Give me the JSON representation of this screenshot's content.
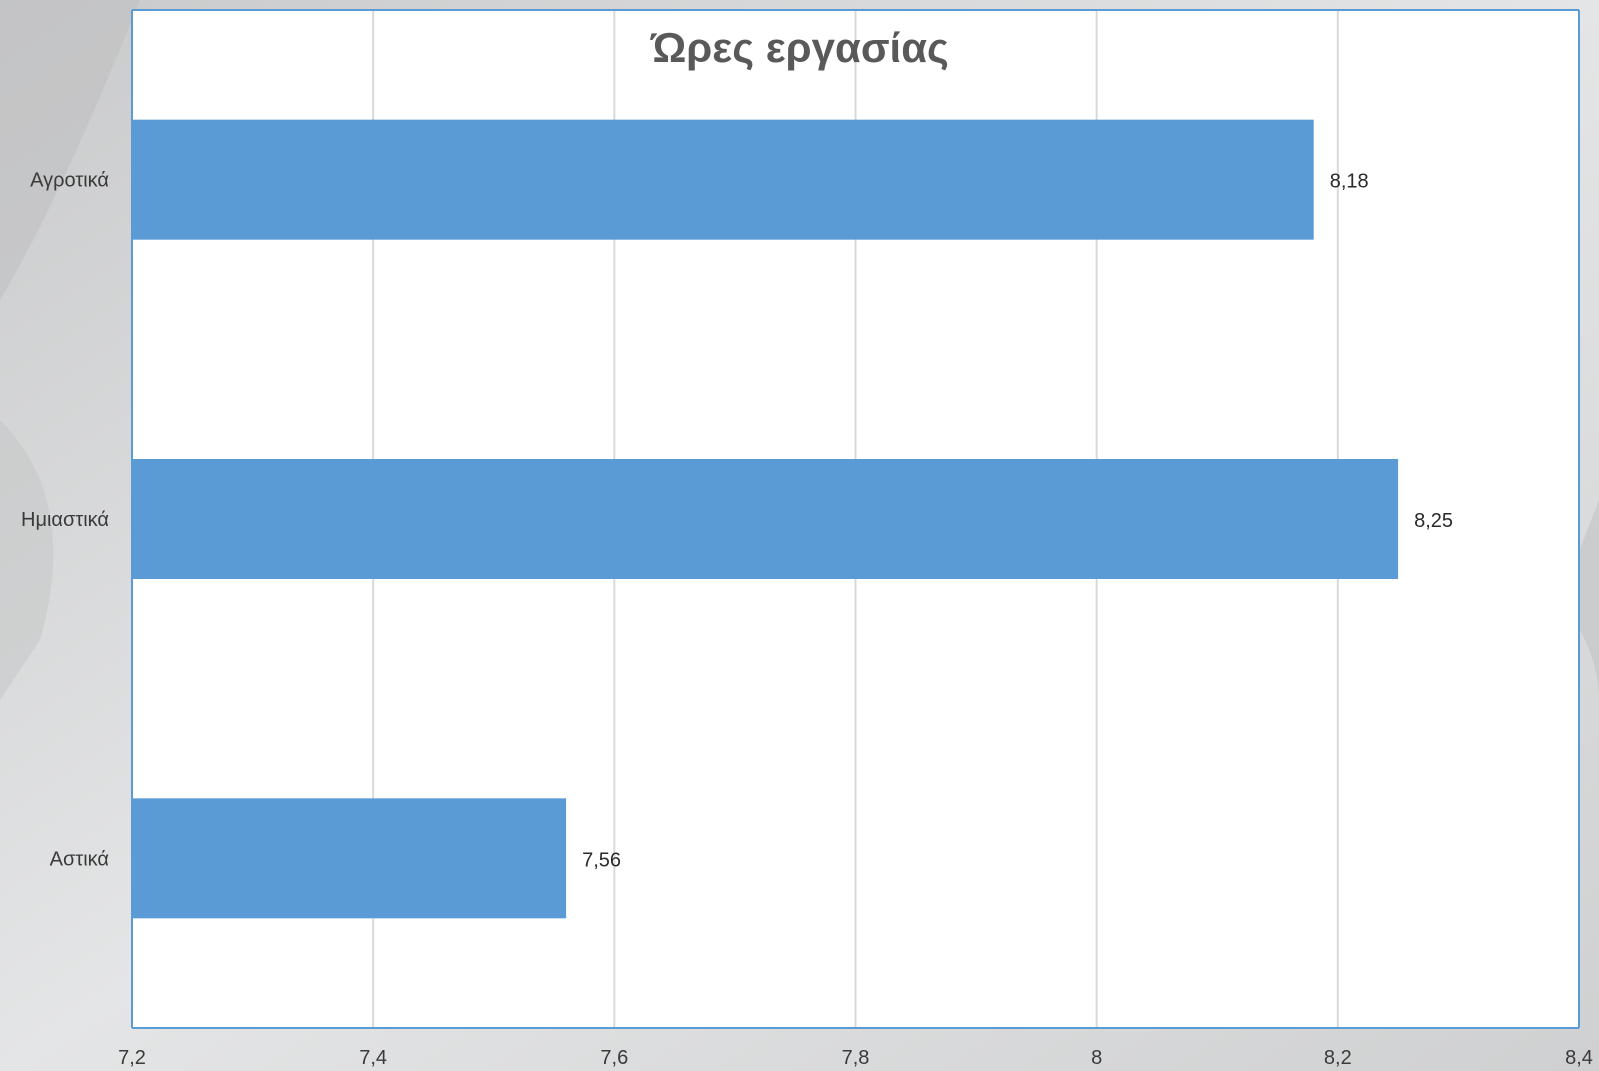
{
  "colors": {
    "bar": "#5b9bd5",
    "plot_background": "#ffffff",
    "plot_border": "#5b9bd5",
    "gridline": "#d9d9d9",
    "page_background": "#d9dadb"
  },
  "chart_data": {
    "type": "bar",
    "orientation": "horizontal",
    "title": "Ώρες εργασίας",
    "categories": [
      "Αγροτικά",
      "Ημιαστικά",
      "Αστικά"
    ],
    "values": [
      8.18,
      8.25,
      7.56
    ],
    "value_labels": [
      "8,18",
      "8,25",
      "7,56"
    ],
    "xlim": [
      7.2,
      8.4
    ],
    "x_ticks": [
      7.2,
      7.4,
      7.6,
      7.8,
      8.0,
      8.2,
      8.4
    ],
    "x_tick_labels": [
      "7,2",
      "7,4",
      "7,6",
      "7,8",
      "8",
      "8,2",
      "8,4"
    ],
    "grid": "vertical",
    "legend": "none"
  }
}
